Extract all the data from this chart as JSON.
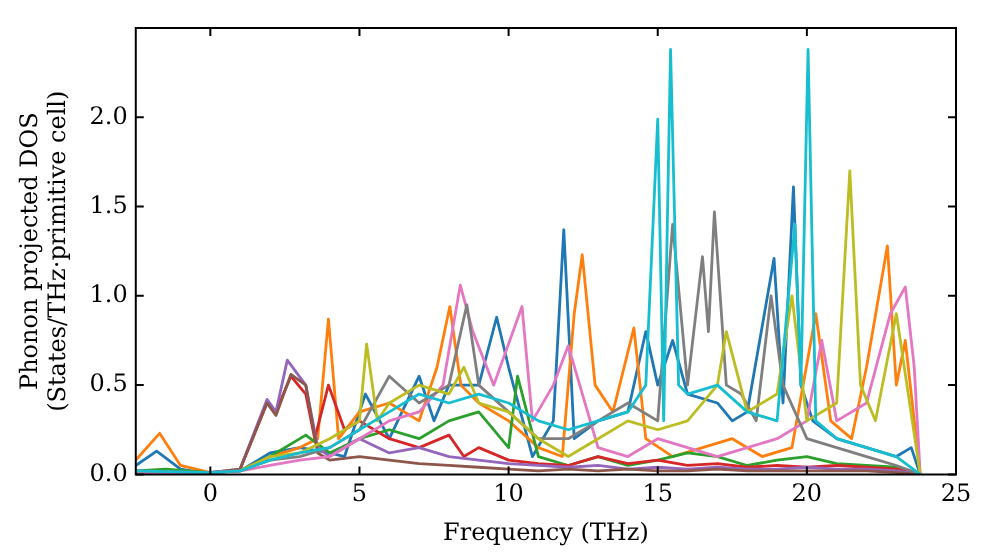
{
  "chart_data": {
    "type": "line",
    "xlabel": "Frequency (THz)",
    "ylabel": "Phonon projected DOS\n(States/THz·primitive cell)",
    "xlim": [
      -2.5,
      25
    ],
    "xticks": [
      0,
      5,
      10,
      15,
      20,
      25
    ],
    "ylim": [
      0,
      2.5
    ],
    "yticks": [
      {
        "value": 0,
        "label": "0.0"
      },
      0.5,
      {
        "value": 1,
        "label": "1.0"
      },
      1.5,
      {
        "value": 2,
        "label": "2.0"
      }
    ],
    "grid": false,
    "legend": false,
    "marker": "none",
    "line_style": "solid",
    "series": [
      {
        "color": "#1f77b4",
        "x": [
          -2.5,
          -1.8,
          -1,
          -0.3,
          1,
          2,
          3,
          4,
          4.5,
          5.2,
          6,
          7,
          7.5,
          8,
          9,
          9.6,
          10,
          10.8,
          11.5,
          11.85,
          12.2,
          13,
          14,
          14.6,
          15,
          15.5,
          16,
          17,
          17.5,
          18,
          18.9,
          19.2,
          19.55,
          19.8,
          20.2,
          21,
          22,
          23,
          23.5,
          23.8
        ],
        "values": [
          0.05,
          0.13,
          0.03,
          0.01,
          0.02,
          0.12,
          0.15,
          0.12,
          0.1,
          0.45,
          0.2,
          0.55,
          0.3,
          0.5,
          0.5,
          0.88,
          0.6,
          0.1,
          0.3,
          1.37,
          0.2,
          0.3,
          0.35,
          0.8,
          0.5,
          0.75,
          0.45,
          0.4,
          0.3,
          0.35,
          1.21,
          0.4,
          1.61,
          0.5,
          0.3,
          0.2,
          0.15,
          0.1,
          0.15,
          0
        ]
      },
      {
        "color": "#ff7f0e",
        "x": [
          -2.5,
          -1.7,
          -1,
          0,
          1,
          2,
          3,
          3.6,
          3.96,
          4.3,
          5,
          6,
          7,
          7.6,
          8.03,
          8.4,
          9,
          10,
          11,
          11.8,
          12.2,
          12.47,
          12.9,
          13.5,
          14.2,
          14.6,
          15.5,
          16.5,
          17.5,
          18.5,
          19.5,
          20.3,
          20.8,
          21.5,
          22,
          22.7,
          23,
          23.3,
          23.8
        ],
        "values": [
          0.08,
          0.23,
          0.05,
          0.01,
          0.02,
          0.1,
          0.15,
          0.2,
          0.87,
          0.2,
          0.35,
          0.4,
          0.3,
          0.6,
          0.94,
          0.5,
          0.4,
          0.3,
          0.15,
          0.1,
          0.9,
          1.23,
          0.5,
          0.35,
          0.82,
          0.2,
          0.1,
          0.15,
          0.2,
          0.1,
          0.15,
          0.9,
          0.3,
          0.2,
          0.6,
          1.28,
          0.5,
          0.75,
          0
        ]
      },
      {
        "color": "#2ca02c",
        "x": [
          -2.5,
          -1.5,
          0,
          1,
          2,
          3.2,
          4,
          5,
          6,
          7,
          8,
          9,
          10,
          10.3,
          11,
          12,
          13,
          14,
          15,
          16,
          17,
          18,
          19,
          20,
          21,
          22,
          23,
          23.8
        ],
        "values": [
          0.02,
          0.03,
          0.01,
          0.02,
          0.1,
          0.22,
          0.12,
          0.2,
          0.25,
          0.2,
          0.3,
          0.35,
          0.15,
          0.55,
          0.1,
          0.05,
          0.1,
          0.05,
          0.08,
          0.12,
          0.1,
          0.05,
          0.08,
          0.1,
          0.06,
          0.05,
          0.04,
          0
        ]
      },
      {
        "color": "#d62728",
        "x": [
          1,
          1.9,
          2.2,
          2.7,
          3.2,
          3.5,
          3.96,
          4.5,
          5,
          6,
          7,
          8,
          8.5,
          9,
          10,
          11,
          12,
          13,
          14,
          15,
          16,
          17,
          18,
          19,
          20,
          21,
          22,
          23,
          23.8
        ],
        "values": [
          0.03,
          0.4,
          0.35,
          0.55,
          0.45,
          0.2,
          0.5,
          0.25,
          0.3,
          0.2,
          0.15,
          0.22,
          0.1,
          0.15,
          0.08,
          0.06,
          0.05,
          0.1,
          0.06,
          0.08,
          0.05,
          0.06,
          0.04,
          0.05,
          0.04,
          0.05,
          0.04,
          0.03,
          0
        ]
      },
      {
        "color": "#9467bd",
        "x": [
          -2.5,
          0,
          1,
          1.9,
          2.2,
          2.58,
          3.2,
          3.6,
          4,
          5,
          6,
          7,
          8,
          9,
          10,
          11,
          12,
          13,
          14,
          15,
          16,
          17,
          18,
          19,
          20,
          21,
          22,
          23,
          23.8
        ],
        "values": [
          0.01,
          0.01,
          0.03,
          0.42,
          0.35,
          0.64,
          0.5,
          0.15,
          0.1,
          0.2,
          0.12,
          0.15,
          0.1,
          0.08,
          0.06,
          0.05,
          0.04,
          0.05,
          0.03,
          0.04,
          0.03,
          0.04,
          0.03,
          0.03,
          0.04,
          0.03,
          0.03,
          0.02,
          0
        ]
      },
      {
        "color": "#8c564b",
        "x": [
          -2.5,
          0,
          1,
          1.9,
          2.2,
          2.7,
          3.2,
          3.6,
          4,
          5,
          6,
          7,
          8,
          9,
          10,
          11,
          12,
          13,
          14,
          15,
          16,
          17,
          18,
          19,
          20,
          21,
          22,
          23,
          23.8
        ],
        "values": [
          0.01,
          0.01,
          0.03,
          0.4,
          0.33,
          0.56,
          0.5,
          0.12,
          0.08,
          0.1,
          0.08,
          0.06,
          0.05,
          0.04,
          0.03,
          0.02,
          0.03,
          0.02,
          0.03,
          0.02,
          0.02,
          0.03,
          0.02,
          0.02,
          0.02,
          0.02,
          0.02,
          0.01,
          0
        ]
      },
      {
        "color": "#e377c2",
        "x": [
          -2.5,
          0,
          1,
          2,
          3,
          4,
          5,
          6,
          7,
          7.8,
          8.38,
          8.8,
          9.5,
          10.45,
          10.8,
          11.5,
          12,
          13,
          14,
          15,
          16,
          17,
          18,
          19,
          20,
          20.5,
          21,
          22,
          22.8,
          23.3,
          23.6,
          23.8
        ],
        "values": [
          0.01,
          0.01,
          0.02,
          0.05,
          0.08,
          0.1,
          0.2,
          0.3,
          0.35,
          0.5,
          1.06,
          0.8,
          0.5,
          0.94,
          0.3,
          0.5,
          0.72,
          0.15,
          0.1,
          0.2,
          0.15,
          0.1,
          0.15,
          0.2,
          0.3,
          0.75,
          0.3,
          0.4,
          0.9,
          1.05,
          0.6,
          0
        ]
      },
      {
        "color": "#7f7f7f",
        "x": [
          -2.5,
          0,
          1,
          2,
          3,
          4,
          5,
          6,
          7,
          8,
          8.6,
          9,
          10,
          11,
          12,
          13,
          14,
          15,
          15.5,
          16,
          16.5,
          16.7,
          16.9,
          17.3,
          17.8,
          18.3,
          18.8,
          19.2,
          20,
          21,
          22,
          23,
          23.8
        ],
        "values": [
          0.02,
          0.01,
          0.02,
          0.08,
          0.1,
          0.15,
          0.25,
          0.55,
          0.4,
          0.5,
          0.95,
          0.5,
          0.35,
          0.2,
          0.2,
          0.3,
          0.4,
          0.3,
          1.4,
          0.5,
          1.22,
          0.8,
          1.47,
          0.5,
          0.45,
          0.3,
          1.0,
          0.5,
          0.2,
          0.15,
          0.1,
          0.05,
          0
        ]
      },
      {
        "color": "#bcbd22",
        "x": [
          1,
          2,
          3,
          4,
          5,
          5.24,
          5.6,
          6,
          7,
          8,
          8.5,
          9,
          10,
          11,
          12,
          13,
          14,
          15,
          16,
          17,
          17.3,
          18,
          19,
          19.5,
          20,
          21,
          21.44,
          21.8,
          22.3,
          23,
          23.8
        ],
        "values": [
          0.02,
          0.1,
          0.12,
          0.2,
          0.3,
          0.73,
          0.3,
          0.4,
          0.5,
          0.45,
          0.6,
          0.4,
          0.35,
          0.2,
          0.1,
          0.2,
          0.3,
          0.25,
          0.3,
          0.5,
          0.8,
          0.35,
          0.45,
          1.0,
          0.3,
          0.4,
          1.7,
          0.5,
          0.3,
          0.9,
          0
        ]
      },
      {
        "color": "#17becf",
        "x": [
          -2.5,
          0,
          1,
          2,
          3,
          4,
          5,
          6,
          7,
          8,
          9,
          10,
          11,
          12,
          13,
          14,
          14.6,
          15.0,
          15.2,
          15.43,
          15.7,
          16,
          17,
          18,
          19,
          19.6,
          19.8,
          20.04,
          20.3,
          21,
          22,
          23,
          23.8
        ],
        "values": [
          0.02,
          0.01,
          0.02,
          0.08,
          0.12,
          0.15,
          0.25,
          0.35,
          0.45,
          0.4,
          0.45,
          0.4,
          0.3,
          0.25,
          0.3,
          0.35,
          0.5,
          1.99,
          0.3,
          2.38,
          0.5,
          0.45,
          0.5,
          0.35,
          0.3,
          1.4,
          0.5,
          2.38,
          0.3,
          0.2,
          0.15,
          0.1,
          0
        ]
      }
    ]
  }
}
